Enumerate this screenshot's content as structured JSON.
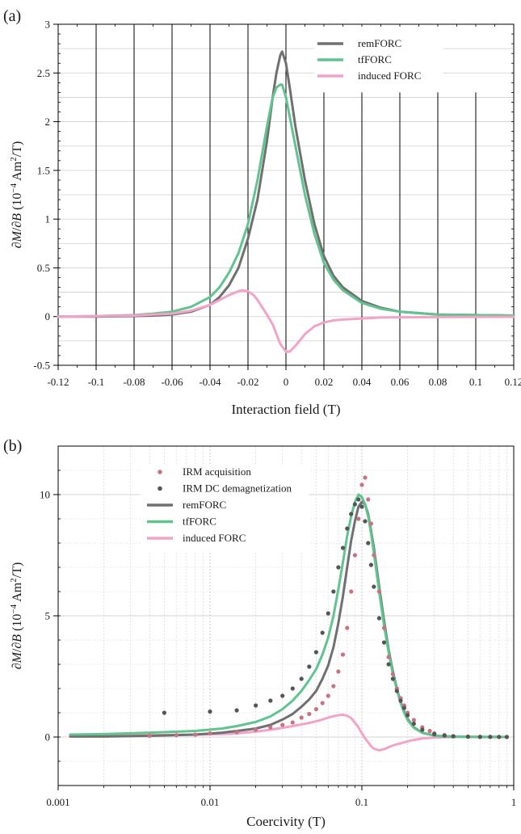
{
  "chart_data": [
    {
      "type": "line",
      "panel_label": "(a)",
      "xlabel": "Interaction field (T)",
      "ylabel_html": [
        "∂",
        "M",
        "/∂",
        "B",
        " (10",
        "−4",
        " Am",
        "2",
        "/T)"
      ],
      "xlim": [
        -0.12,
        0.12
      ],
      "ylim": [
        -0.5,
        3
      ],
      "x_ticks": [
        -0.12,
        -0.1,
        -0.08,
        -0.06,
        -0.04,
        -0.02,
        0,
        0.02,
        0.04,
        0.06,
        0.08,
        0.1,
        0.12
      ],
      "x_tick_labels": [
        "-0.12",
        "-0.1",
        "-0.08",
        "-0.06",
        "-0.04",
        "-0.02",
        "0",
        "0.02",
        "0.04",
        "0.06",
        "0.08",
        "0.1",
        "0.12"
      ],
      "y_ticks": [
        -0.5,
        0,
        0.5,
        1,
        1.5,
        2,
        2.5,
        3
      ],
      "y_tick_labels": [
        "-0.5",
        "0",
        "0.5",
        "1",
        "1.5",
        "2",
        "2.5",
        "3"
      ],
      "grid": "horizontal-and-vertical",
      "legend_position": "top-right",
      "series": [
        {
          "name": "remFORC",
          "color": "#707070",
          "x": [
            -0.12,
            -0.1,
            -0.08,
            -0.07,
            -0.06,
            -0.05,
            -0.04,
            -0.035,
            -0.03,
            -0.025,
            -0.02,
            -0.015,
            -0.01,
            -0.007,
            -0.005,
            -0.003,
            -0.002,
            0,
            0.002,
            0.005,
            0.01,
            0.015,
            0.02,
            0.025,
            0.03,
            0.04,
            0.05,
            0.06,
            0.08,
            0.1,
            0.12
          ],
          "y": [
            0,
            0,
            0.005,
            0.01,
            0.02,
            0.05,
            0.12,
            0.2,
            0.32,
            0.5,
            0.8,
            1.2,
            1.8,
            2.25,
            2.5,
            2.68,
            2.72,
            2.6,
            2.35,
            1.95,
            1.4,
            0.95,
            0.62,
            0.42,
            0.3,
            0.16,
            0.09,
            0.05,
            0.02,
            0.015,
            0.01
          ]
        },
        {
          "name": "tfFORC",
          "color": "#5fc48e",
          "x": [
            -0.12,
            -0.1,
            -0.08,
            -0.07,
            -0.06,
            -0.05,
            -0.04,
            -0.035,
            -0.03,
            -0.025,
            -0.02,
            -0.015,
            -0.01,
            -0.007,
            -0.005,
            -0.003,
            -0.002,
            0,
            0.002,
            0.005,
            0.01,
            0.015,
            0.02,
            0.025,
            0.03,
            0.04,
            0.05,
            0.06,
            0.08,
            0.1,
            0.12
          ],
          "y": [
            0,
            0.005,
            0.015,
            0.03,
            0.05,
            0.1,
            0.2,
            0.3,
            0.45,
            0.65,
            0.95,
            1.4,
            1.95,
            2.25,
            2.35,
            2.38,
            2.38,
            2.25,
            2.05,
            1.75,
            1.25,
            0.85,
            0.55,
            0.38,
            0.27,
            0.14,
            0.08,
            0.05,
            0.02,
            0.015,
            0.01
          ]
        },
        {
          "name": "induced FORC",
          "color": "#f3a3c8",
          "x": [
            -0.12,
            -0.1,
            -0.08,
            -0.07,
            -0.06,
            -0.05,
            -0.04,
            -0.035,
            -0.03,
            -0.025,
            -0.023,
            -0.02,
            -0.017,
            -0.015,
            -0.012,
            -0.01,
            -0.007,
            -0.005,
            -0.003,
            0,
            0.002,
            0.005,
            0.01,
            0.015,
            0.02,
            0.025,
            0.03,
            0.04,
            0.05,
            0.06,
            0.08,
            0.1,
            0.12
          ],
          "y": [
            0,
            0.005,
            0.01,
            0.02,
            0.03,
            0.06,
            0.12,
            0.17,
            0.22,
            0.26,
            0.27,
            0.26,
            0.22,
            0.17,
            0.08,
            0.02,
            -0.08,
            -0.18,
            -0.28,
            -0.36,
            -0.36,
            -0.3,
            -0.18,
            -0.1,
            -0.06,
            -0.04,
            -0.03,
            -0.02,
            -0.01,
            -0.008,
            -0.005,
            -0.003,
            -0.002
          ]
        }
      ]
    },
    {
      "type": "line",
      "panel_label": "(b)",
      "xlabel": "Coercivity (T)",
      "ylabel_html": [
        "∂",
        "M",
        "/∂",
        "B",
        " (10",
        "−4",
        " Am",
        "2",
        "/T)"
      ],
      "xscale": "log",
      "xlim": [
        0.001,
        1
      ],
      "ylim": [
        -2,
        12
      ],
      "x_ticks": [
        0.001,
        0.01,
        0.1,
        1
      ],
      "x_tick_labels": [
        "0.001",
        "0.01",
        "0.1",
        "1"
      ],
      "y_ticks": [
        0,
        5,
        10
      ],
      "y_tick_labels": [
        "0",
        "5",
        "10"
      ],
      "grid": "horizontal-and-vertical",
      "legend_position": "top-left",
      "series": [
        {
          "name": "IRM acquisition",
          "style": "markers",
          "color": "#c77381",
          "x": [
            0.004,
            0.006,
            0.008,
            0.01,
            0.015,
            0.02,
            0.025,
            0.03,
            0.035,
            0.04,
            0.045,
            0.05,
            0.055,
            0.06,
            0.065,
            0.07,
            0.075,
            0.08,
            0.085,
            0.09,
            0.095,
            0.1,
            0.105,
            0.11,
            0.115,
            0.12,
            0.13,
            0.14,
            0.15,
            0.16,
            0.17,
            0.18,
            0.19,
            0.2,
            0.22,
            0.25,
            0.28,
            0.3,
            0.35,
            0.4,
            0.5,
            0.6,
            0.7,
            0.8,
            0.9
          ],
          "y": [
            0.05,
            0.08,
            0.1,
            0.15,
            0.2,
            0.3,
            0.4,
            0.5,
            0.6,
            0.8,
            0.95,
            1.15,
            1.4,
            1.7,
            2.1,
            2.7,
            3.4,
            4.5,
            6,
            7.5,
            9,
            10.4,
            10.7,
            9.8,
            8.8,
            7.5,
            6,
            4.5,
            3.3,
            2.6,
            2.0,
            1.6,
            1.3,
            1.0,
            0.7,
            0.4,
            0.25,
            0.15,
            0.08,
            0.04,
            0.02,
            0.01,
            0.01,
            0.005,
            0.005
          ]
        },
        {
          "name": "IRM DC demagnetization",
          "style": "markers",
          "color": "#555555",
          "x": [
            0.005,
            0.01,
            0.015,
            0.02,
            0.025,
            0.03,
            0.035,
            0.04,
            0.045,
            0.05,
            0.055,
            0.06,
            0.065,
            0.07,
            0.075,
            0.08,
            0.085,
            0.09,
            0.095,
            0.1,
            0.105,
            0.11,
            0.115,
            0.12,
            0.13,
            0.14,
            0.15,
            0.16,
            0.17,
            0.18,
            0.19,
            0.2,
            0.22,
            0.25,
            0.3,
            0.35,
            0.4,
            0.5,
            0.6,
            0.7,
            0.8,
            0.9
          ],
          "y": [
            1.0,
            1.05,
            1.1,
            1.3,
            1.5,
            1.7,
            2.0,
            2.4,
            2.9,
            3.5,
            4.3,
            5.1,
            6.0,
            7.0,
            7.8,
            8.6,
            9.2,
            9.6,
            9.8,
            9.5,
            8.9,
            8.0,
            7.1,
            6.2,
            4.9,
            3.9,
            3.0,
            2.4,
            1.9,
            1.5,
            1.2,
            0.9,
            0.55,
            0.3,
            0.12,
            0.06,
            0.03,
            0.01,
            0.005,
            0.003,
            0.002,
            0.001
          ]
        },
        {
          "name": "remFORC",
          "style": "line",
          "color": "#707070",
          "x": [
            0.0012,
            0.002,
            0.004,
            0.008,
            0.012,
            0.015,
            0.02,
            0.025,
            0.03,
            0.035,
            0.04,
            0.045,
            0.05,
            0.055,
            0.06,
            0.065,
            0.07,
            0.075,
            0.08,
            0.085,
            0.09,
            0.095,
            0.1,
            0.105,
            0.11,
            0.115,
            0.12,
            0.13,
            0.14,
            0.15,
            0.16,
            0.17,
            0.18,
            0.19,
            0.2,
            0.22,
            0.25,
            0.3,
            0.35,
            0.4,
            0.5,
            0.6,
            0.7,
            0.8,
            0.9
          ],
          "y": [
            0.02,
            0.02,
            0.05,
            0.1,
            0.18,
            0.25,
            0.35,
            0.5,
            0.72,
            0.95,
            1.25,
            1.55,
            1.9,
            2.4,
            2.95,
            3.7,
            4.7,
            5.8,
            7.0,
            8.1,
            8.9,
            9.5,
            9.7,
            9.6,
            9.2,
            8.5,
            7.8,
            6.2,
            4.8,
            3.6,
            2.7,
            2.0,
            1.45,
            1.05,
            0.75,
            0.4,
            0.18,
            0.06,
            0.03,
            0.02,
            0.01,
            0.005,
            0.005,
            0.003,
            0.002
          ]
        },
        {
          "name": "tfFORC",
          "style": "line",
          "color": "#5fc48e",
          "x": [
            0.0012,
            0.002,
            0.004,
            0.008,
            0.012,
            0.015,
            0.02,
            0.025,
            0.03,
            0.035,
            0.04,
            0.045,
            0.05,
            0.055,
            0.06,
            0.065,
            0.07,
            0.075,
            0.08,
            0.085,
            0.09,
            0.095,
            0.1,
            0.105,
            0.11,
            0.115,
            0.12,
            0.13,
            0.14,
            0.15,
            0.16,
            0.17,
            0.18,
            0.19,
            0.2,
            0.22,
            0.25,
            0.3,
            0.35,
            0.4,
            0.5,
            0.6,
            0.7,
            0.8,
            0.9
          ],
          "y": [
            0.1,
            0.12,
            0.18,
            0.25,
            0.35,
            0.45,
            0.62,
            0.85,
            1.15,
            1.5,
            1.9,
            2.35,
            2.8,
            3.4,
            4.1,
            5.0,
            6.1,
            7.2,
            8.3,
            9.1,
            9.7,
            10.0,
            9.9,
            9.6,
            9.1,
            8.4,
            7.6,
            6.0,
            4.6,
            3.5,
            2.6,
            1.95,
            1.4,
            1.0,
            0.7,
            0.38,
            0.17,
            0.06,
            0.03,
            0.02,
            0.01,
            0.005,
            0.005,
            0.003,
            0.002
          ]
        },
        {
          "name": "induced FORC",
          "style": "line",
          "color": "#f3a3c8",
          "x": [
            0.0012,
            0.002,
            0.004,
            0.008,
            0.012,
            0.015,
            0.02,
            0.025,
            0.03,
            0.035,
            0.04,
            0.045,
            0.05,
            0.055,
            0.06,
            0.065,
            0.07,
            0.075,
            0.08,
            0.085,
            0.09,
            0.095,
            0.1,
            0.105,
            0.11,
            0.115,
            0.12,
            0.13,
            0.14,
            0.15,
            0.16,
            0.17,
            0.18,
            0.19,
            0.2,
            0.22,
            0.25,
            0.3,
            0.35,
            0.4,
            0.5,
            0.6,
            0.7,
            0.8,
            0.9
          ],
          "y": [
            0.05,
            0.06,
            0.08,
            0.1,
            0.12,
            0.15,
            0.22,
            0.3,
            0.38,
            0.45,
            0.52,
            0.58,
            0.65,
            0.72,
            0.8,
            0.86,
            0.9,
            0.92,
            0.88,
            0.78,
            0.6,
            0.4,
            0.15,
            -0.05,
            -0.22,
            -0.38,
            -0.48,
            -0.55,
            -0.5,
            -0.42,
            -0.35,
            -0.3,
            -0.26,
            -0.22,
            -0.18,
            -0.12,
            -0.06,
            -0.02,
            -0.01,
            0,
            0,
            0,
            0,
            0,
            0
          ]
        }
      ]
    }
  ]
}
